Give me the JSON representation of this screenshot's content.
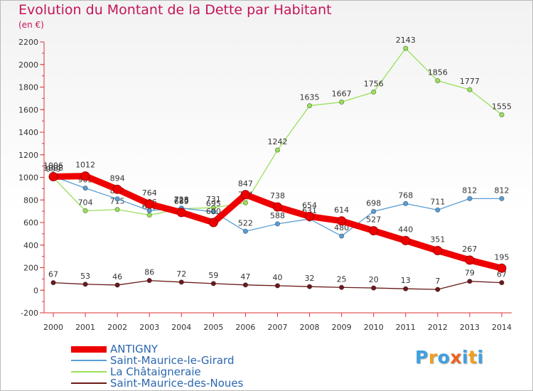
{
  "chart_data": {
    "type": "line",
    "title": "Evolution du Montant de la Dette par Habitant",
    "subtitle": "(en €)",
    "xlabel": "",
    "ylabel": "",
    "x": [
      "2000",
      "2001",
      "2002",
      "2003",
      "2004",
      "2005",
      "2006",
      "2007",
      "2008",
      "2009",
      "2010",
      "2011",
      "2012",
      "2013",
      "2014"
    ],
    "ylim": [
      -200,
      2200
    ],
    "yticks": [
      -200,
      0,
      200,
      400,
      600,
      800,
      1000,
      1200,
      1400,
      1600,
      1800,
      2000,
      2200
    ],
    "grid": false,
    "legend_position": "bottom-left",
    "series": [
      {
        "name": "Saint-Maurice-des-Noues",
        "color": "#6b1a1a",
        "values": [
          67,
          53,
          46,
          86,
          72,
          59,
          47,
          40,
          32,
          25,
          20,
          13,
          7,
          79,
          67
        ]
      },
      {
        "name": "La Châtaigneraie",
        "color": "#99e05a",
        "values": [
          999,
          704,
          715,
          666,
          723,
          731,
          774,
          1242,
          1635,
          1667,
          1756,
          2143,
          1856,
          1777,
          1555
        ]
      },
      {
        "name": "Saint-Maurice-le-Girard",
        "color": "#5a9dd4",
        "values": [
          1008,
          905,
          809,
          706,
          728,
          695,
          522,
          588,
          631,
          480,
          698,
          768,
          711,
          812,
          812
        ]
      },
      {
        "name": "ANTIGNY",
        "color": "#ee0000",
        "values": [
          1006,
          1012,
          894,
          764,
          689,
          600,
          847,
          738,
          654,
          614,
          527,
          440,
          351,
          267,
          195
        ]
      }
    ],
    "legend": [
      {
        "name": "ANTIGNY",
        "color": "#ee0000"
      },
      {
        "name": "Saint-Maurice-le-Girard",
        "color": "#5a9dd4"
      },
      {
        "name": "La Châtaigneraie",
        "color": "#99e05a"
      },
      {
        "name": "Saint-Maurice-des-Noues",
        "color": "#6b1a1a"
      }
    ]
  },
  "logo": {
    "text": "Proxiti",
    "colors": [
      "#3fa0e0",
      "#f0a020",
      "#3fa0e0",
      "#f06020",
      "#3fa0e0",
      "#f0a020",
      "#3fa0e0"
    ]
  }
}
